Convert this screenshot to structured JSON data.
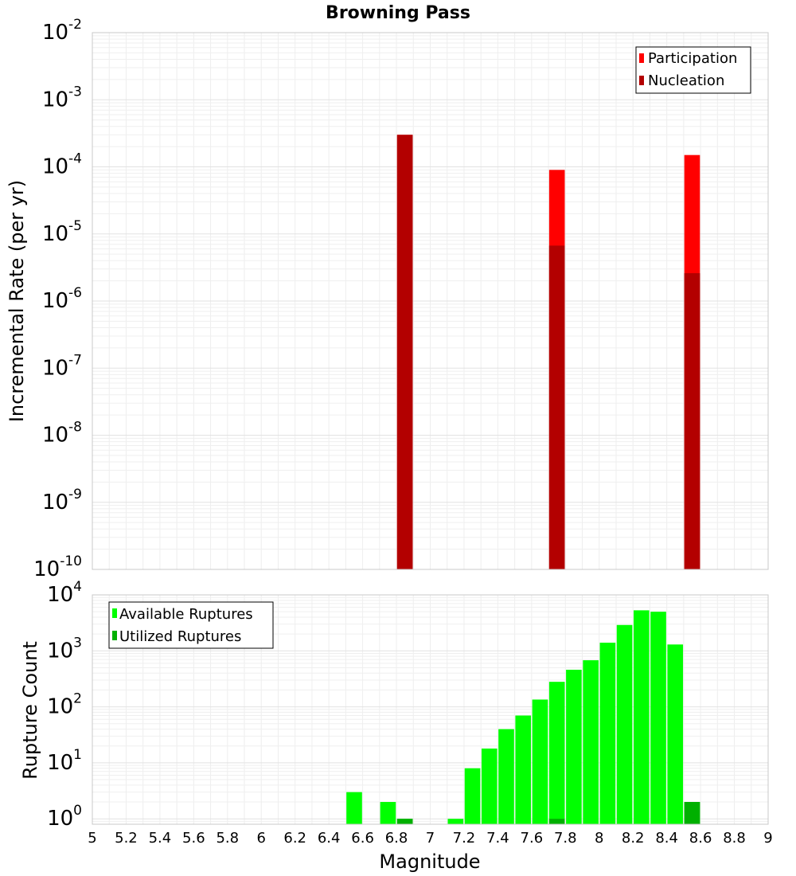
{
  "colors": {
    "participation": "#ff0000",
    "nucleation": "#b30000",
    "available": "#00ff00",
    "utilized": "#00b000"
  },
  "chart_data": [
    {
      "type": "bar",
      "title": "Browning Pass",
      "ylabel": "Incremental Rate (per yr)",
      "yscale": "log",
      "ylim": [
        1e-10,
        0.01
      ],
      "xlim": [
        5,
        9
      ],
      "bin_width": 0.1,
      "grid": true,
      "legend": "top-right",
      "series": [
        {
          "name": "Participation",
          "x": [
            6.85,
            7.75,
            8.55
          ],
          "values": [
            0.0003,
            9e-05,
            0.00015
          ]
        },
        {
          "name": "Nucleation",
          "x": [
            6.85,
            7.75,
            8.55
          ],
          "values": [
            0.0003,
            6.7e-06,
            2.6e-06
          ]
        }
      ]
    },
    {
      "type": "bar",
      "xlabel": "Magnitude",
      "ylabel": "Rupture Count",
      "yscale": "log",
      "ylim": [
        0.8,
        10000
      ],
      "xlim": [
        5,
        9
      ],
      "bin_width": 0.1,
      "grid": true,
      "legend": "top-left",
      "x_ticks": [
        "5",
        "5.2",
        "5.4",
        "5.6",
        "5.8",
        "6",
        "6.2",
        "6.4",
        "6.6",
        "6.8",
        "7",
        "7.2",
        "7.4",
        "7.6",
        "7.8",
        "8",
        "8.2",
        "8.4",
        "8.6",
        "8.8",
        "9"
      ],
      "series": [
        {
          "name": "Available Ruptures",
          "x": [
            6.55,
            6.75,
            6.85,
            7.15,
            7.25,
            7.35,
            7.45,
            7.55,
            7.65,
            7.75,
            7.85,
            7.95,
            8.05,
            8.15,
            8.25,
            8.35,
            8.45,
            8.55
          ],
          "values": [
            3,
            2,
            1,
            1,
            8,
            18,
            40,
            70,
            135,
            280,
            460,
            680,
            1400,
            2900,
            5300,
            5000,
            1300,
            2
          ]
        },
        {
          "name": "Utilized Ruptures",
          "x": [
            6.85,
            7.75,
            8.55
          ],
          "values": [
            1,
            1,
            2
          ]
        }
      ]
    }
  ]
}
